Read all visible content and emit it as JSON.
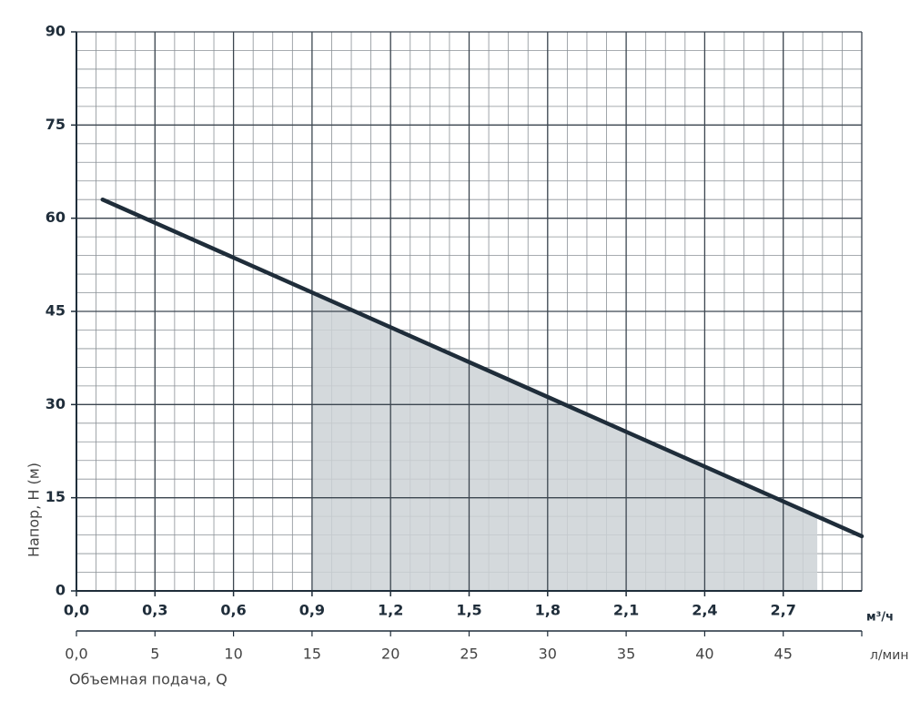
{
  "chart_data": {
    "type": "line",
    "ylabel": "Напор, H (м)",
    "xlabel": "Объемная подача, Q",
    "x_unit": "м³/ч",
    "x2_unit": "л/мин",
    "xlim": [
      0,
      3
    ],
    "xticks": [
      {
        "value": 0,
        "label": "0,0"
      },
      {
        "value": 0.3,
        "label": "0,3"
      },
      {
        "value": 0.6,
        "label": "0,6"
      },
      {
        "value": 0.9,
        "label": "0,9"
      },
      {
        "value": 1.2,
        "label": "1,2"
      },
      {
        "value": 1.5,
        "label": "1,5"
      },
      {
        "value": 1.8,
        "label": "1,8"
      },
      {
        "value": 2.1,
        "label": "2,1"
      },
      {
        "value": 2.4,
        "label": "2,4"
      },
      {
        "value": 2.7,
        "label": "2,7"
      }
    ],
    "x2lim": [
      0,
      50
    ],
    "x2ticks": [
      {
        "value": 0,
        "label": "0,0"
      },
      5,
      10,
      15,
      20,
      25,
      30,
      35,
      40,
      45
    ],
    "ylim": [
      0,
      90
    ],
    "yticks": [
      0,
      15,
      30,
      45,
      60,
      75,
      90
    ],
    "grid": true,
    "series": [
      {
        "color": "#1f2d3a",
        "x": [
          0.1,
          3.0
        ],
        "values": [
          63,
          8.8
        ]
      }
    ],
    "shaded_range": [
      0.9,
      2.83
    ],
    "shade_color": "#cdd2d6"
  }
}
